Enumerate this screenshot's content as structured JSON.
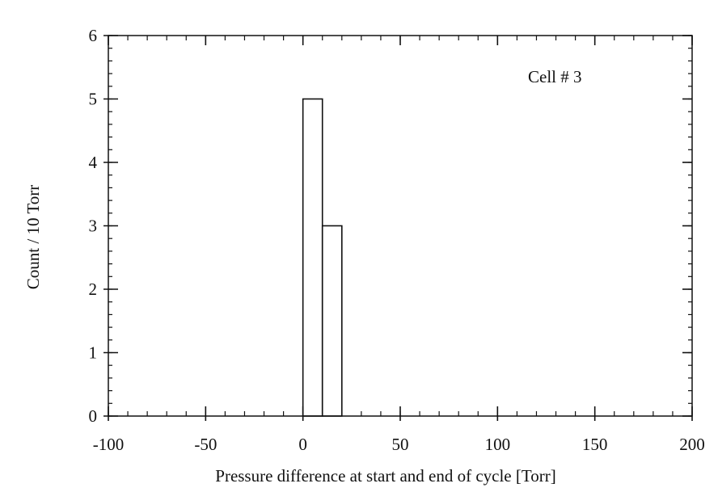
{
  "chart_data": {
    "type": "bar",
    "subtype": "histogram",
    "annotation": "Cell # 3",
    "xlabel": "Pressure difference at start and end of cycle [Torr]",
    "ylabel": "Count / 10 Torr",
    "xlim": [
      -100,
      200
    ],
    "ylim": [
      0,
      6
    ],
    "x_ticks": [
      -100,
      -50,
      0,
      50,
      100,
      150,
      200
    ],
    "y_ticks": [
      0,
      1,
      2,
      3,
      4,
      5,
      6
    ],
    "x_minor_step": 10,
    "y_minor_step": 0.2,
    "bins": [
      {
        "x0": 0,
        "x1": 10,
        "count": 5
      },
      {
        "x0": 10,
        "x1": 20,
        "count": 3
      }
    ],
    "grid": false,
    "legend": "none"
  }
}
